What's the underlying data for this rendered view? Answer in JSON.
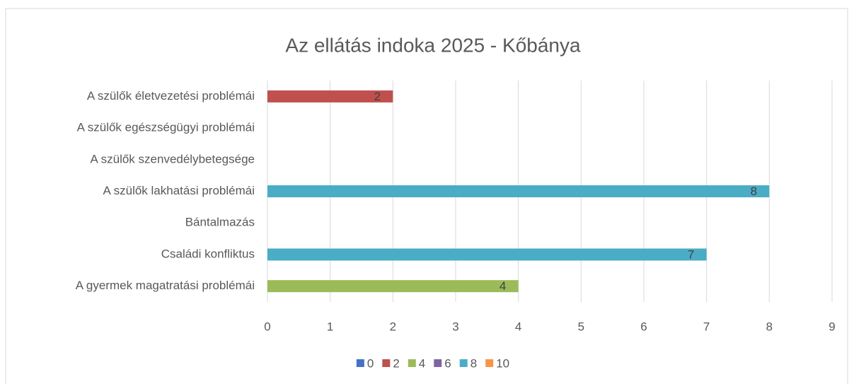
{
  "chart_data": {
    "type": "bar",
    "orientation": "horizontal",
    "title": "Az ellátás indoka 2025 - Kőbánya",
    "categories": [
      "A szülők életvezetési problémái",
      "A szülők egészségügyi problémái",
      "A szülők szenvedélybetegsége",
      "A szülők lakhatási problémái",
      "Bántalmazás",
      "Családi konfliktus",
      "A gyermek magatratási problémái"
    ],
    "series": [
      {
        "name": "0",
        "color": "#4472c4",
        "values": [
          null,
          null,
          null,
          null,
          null,
          null,
          null
        ]
      },
      {
        "name": "2",
        "color": "#c0504d",
        "values": [
          2,
          null,
          null,
          null,
          null,
          null,
          null
        ]
      },
      {
        "name": "4",
        "color": "#9bbb59",
        "values": [
          null,
          null,
          null,
          null,
          null,
          null,
          4
        ]
      },
      {
        "name": "6",
        "color": "#8064a2",
        "values": [
          null,
          null,
          null,
          null,
          null,
          null,
          null
        ]
      },
      {
        "name": "8",
        "color": "#4bacc6",
        "values": [
          null,
          null,
          null,
          8,
          null,
          7,
          null
        ]
      },
      {
        "name": "10",
        "color": "#f79646",
        "values": [
          null,
          null,
          null,
          null,
          null,
          null,
          null
        ]
      }
    ],
    "xlim": [
      0,
      9
    ],
    "xticks": [
      0,
      1,
      2,
      3,
      4,
      5,
      6,
      7,
      8,
      9
    ],
    "grid": true,
    "legend": "bottom",
    "data_labels": true
  }
}
